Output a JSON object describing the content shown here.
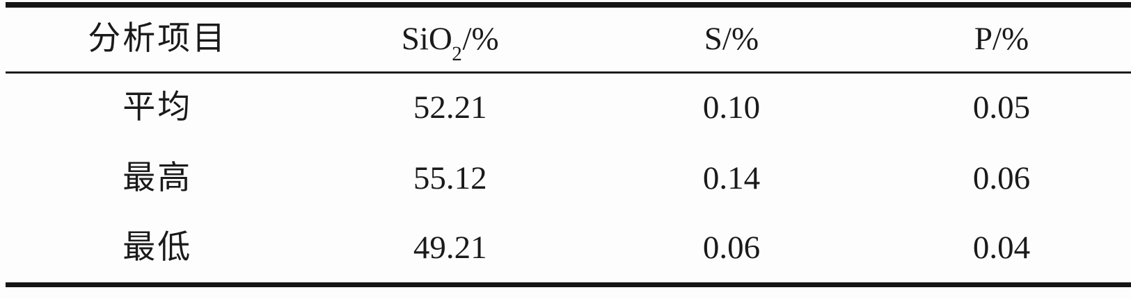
{
  "colors": {
    "background": "#fdfdfd",
    "text": "#1a1a1a",
    "rule": "#161616"
  },
  "table": {
    "header": {
      "col1": "分析项目",
      "col2_prefix": "SiO",
      "col2_sub": "2",
      "col2_suffix": "/%",
      "col3": "S/%",
      "col4": "P/%"
    },
    "rows": [
      {
        "label": "平均",
        "sio2": "52.21",
        "s": "0.10",
        "p": "0.05"
      },
      {
        "label": "最高",
        "sio2": "55.12",
        "s": "0.14",
        "p": "0.06"
      },
      {
        "label": "最低",
        "sio2": "49.21",
        "s": "0.06",
        "p": "0.04"
      }
    ]
  }
}
